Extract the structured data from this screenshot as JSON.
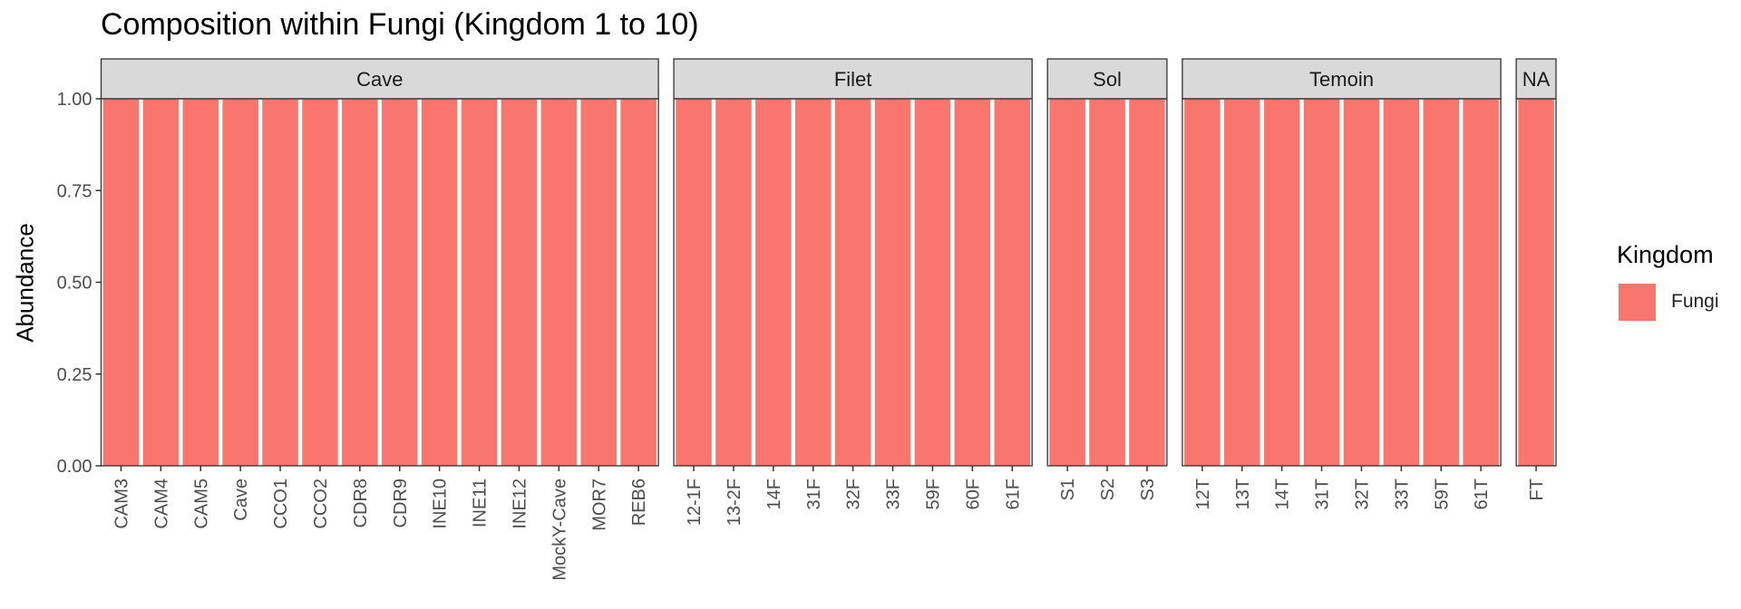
{
  "chart_data": {
    "type": "bar",
    "title": "Composition within Fungi (Kingdom 1 to 10)",
    "xlabel": "",
    "ylabel": "Abundance",
    "ylim": [
      0,
      1
    ],
    "y_ticks": [
      "0.00",
      "0.25",
      "0.50",
      "0.75",
      "1.00"
    ],
    "y_tick_values": [
      0,
      0.25,
      0.5,
      0.75,
      1.0
    ],
    "grid": false,
    "legend": {
      "title": "Kingdom",
      "position": "right",
      "entries": [
        {
          "label": "Fungi",
          "color": "#F8766D"
        }
      ]
    },
    "fill_color": "#F8766D",
    "strip_color": "#D9D9D9",
    "panels": [
      {
        "facet": "Cave",
        "categories": [
          "CAM3",
          "CAM4",
          "CAM5",
          "Cave",
          "CCO1",
          "CCO2",
          "CDR8",
          "CDR9",
          "INE10",
          "INE11",
          "INE12",
          "MockY-Cave",
          "MOR7",
          "REB6"
        ],
        "values": [
          1,
          1,
          1,
          1,
          1,
          1,
          1,
          1,
          1,
          1,
          1,
          1,
          1,
          1
        ]
      },
      {
        "facet": "Filet",
        "categories": [
          "12-1F",
          "13-2F",
          "14F",
          "31F",
          "32F",
          "33F",
          "59F",
          "60F",
          "61F"
        ],
        "values": [
          1,
          1,
          1,
          1,
          1,
          1,
          1,
          1,
          1
        ]
      },
      {
        "facet": "Sol",
        "categories": [
          "S1",
          "S2",
          "S3"
        ],
        "values": [
          1,
          1,
          1
        ]
      },
      {
        "facet": "Temoin",
        "categories": [
          "12T",
          "13T",
          "14T",
          "31T",
          "32T",
          "33T",
          "59T",
          "61T"
        ],
        "values": [
          1,
          1,
          1,
          1,
          1,
          1,
          1,
          1
        ]
      },
      {
        "facet": "NA",
        "categories": [
          "FT"
        ],
        "values": [
          1
        ]
      }
    ]
  }
}
